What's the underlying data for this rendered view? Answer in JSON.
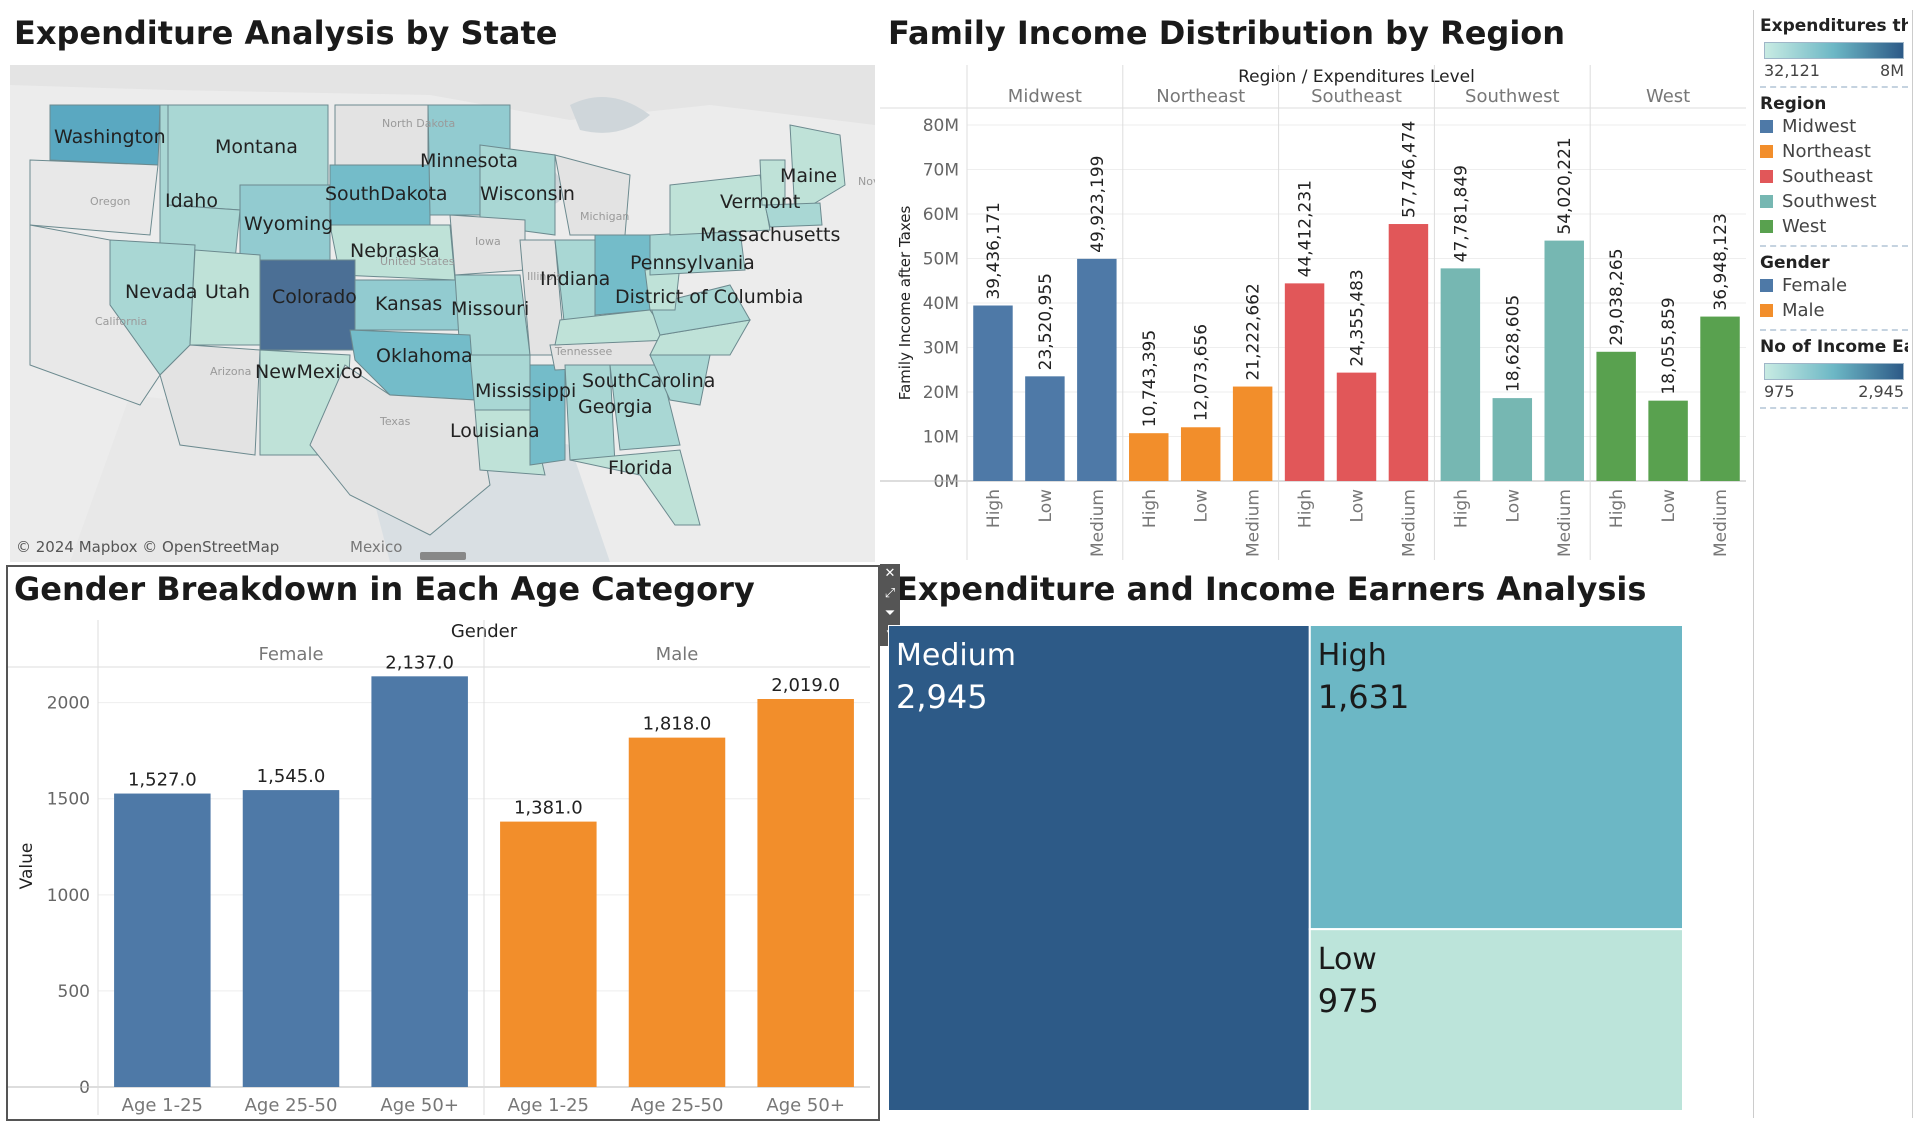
{
  "titles": {
    "map": "Expenditure Analysis by State",
    "region": "Family Income Distribution by Region",
    "age": "Gender Breakdown in Each Age Category",
    "treemap": "Expenditure and Income Earners Analysis"
  },
  "map": {
    "attribution": "© 2024 Mapbox © OpenStreetMap",
    "mexico": "Mexico",
    "state_labels": [
      "Washington",
      "Montana",
      "Idaho",
      "Wyoming",
      "SouthDakota",
      "Minnesota",
      "Wisconsin",
      "Nebraska",
      "Nevada",
      "Utah",
      "Colorado",
      "Kansas",
      "Missouri",
      "Oklahoma",
      "NewMexico",
      "Indiana",
      "Pennsylvania",
      "District of Columbia",
      "Vermont",
      "Maine",
      "Massachusetts",
      "Mississippi",
      "SouthCarolina",
      "Georgia",
      "Louisiana",
      "Florida"
    ],
    "ghost_labels": [
      "North Dakota",
      "Oregon",
      "Iowa",
      "Illinois",
      "Michigan",
      "California",
      "Arizona",
      "Texas",
      "Tennessee",
      "United States",
      "Nova"
    ]
  },
  "legend": {
    "expenditures_title": "Expenditures thi...",
    "expenditures_min": "32,121",
    "expenditures_max": "8M",
    "region_title": "Region",
    "regions": [
      {
        "name": "Midwest",
        "color": "#4e79a7"
      },
      {
        "name": "Northeast",
        "color": "#f28e2b"
      },
      {
        "name": "Southeast",
        "color": "#e15759"
      },
      {
        "name": "Southwest",
        "color": "#76b7b2"
      },
      {
        "name": "West",
        "color": "#59a14f"
      }
    ],
    "gender_title": "Gender",
    "genders": [
      {
        "name": "Female",
        "color": "#4e79a7"
      },
      {
        "name": "Male",
        "color": "#f28e2b"
      }
    ],
    "earners_title": "No of Income Ea...",
    "earners_min": "975",
    "earners_max": "2,945"
  },
  "chart_data": [
    {
      "type": "bar",
      "title": "Family Income Distribution by Region",
      "header": "Region / Expenditures Level",
      "ylabel": "Family Income after Taxes",
      "ylim": [
        0,
        80000000
      ],
      "yticks": [
        "0M",
        "10M",
        "20M",
        "30M",
        "40M",
        "50M",
        "60M",
        "70M",
        "80M"
      ],
      "groups": [
        {
          "region": "Midwest",
          "color": "#4e79a7",
          "categories": [
            "High",
            "Low",
            "Medium"
          ],
          "values": [
            39436171,
            23520955,
            49923199
          ],
          "labels": [
            "39,436,171",
            "23,520,955",
            "49,923,199"
          ]
        },
        {
          "region": "Northeast",
          "color": "#f28e2b",
          "categories": [
            "High",
            "Low",
            "Medium"
          ],
          "values": [
            10743395,
            12073656,
            21222662
          ],
          "labels": [
            "10,743,395",
            "12,073,656",
            "21,222,662"
          ]
        },
        {
          "region": "Southeast",
          "color": "#e15759",
          "categories": [
            "High",
            "Low",
            "Medium"
          ],
          "values": [
            44412231,
            24355483,
            57746474
          ],
          "labels": [
            "44,412,231",
            "24,355,483",
            "57,746,474"
          ]
        },
        {
          "region": "Southwest",
          "color": "#76b7b2",
          "categories": [
            "High",
            "Low",
            "Medium"
          ],
          "values": [
            47781849,
            18628605,
            54020221
          ],
          "labels": [
            "47,781,849",
            "18,628,605",
            "54,020,221"
          ]
        },
        {
          "region": "West",
          "color": "#59a14f",
          "categories": [
            "High",
            "Low",
            "Medium"
          ],
          "values": [
            29038265,
            18055859,
            36948123
          ],
          "labels": [
            "29,038,265",
            "18,055,859",
            "36,948,123"
          ]
        }
      ]
    },
    {
      "type": "bar",
      "title": "Gender Breakdown in Each Age Category",
      "header": "Gender",
      "ylabel": "Value",
      "ylim": [
        0,
        2300
      ],
      "yticks": [
        "0",
        "500",
        "1000",
        "1500",
        "2000"
      ],
      "groups": [
        {
          "gender": "Female",
          "color": "#4e79a7",
          "categories": [
            "Age 1-25",
            "Age 25-50",
            "Age 50+"
          ],
          "values": [
            1527,
            1545,
            2137
          ],
          "labels": [
            "1,527.0",
            "1,545.0",
            "2,137.0"
          ]
        },
        {
          "gender": "Male",
          "color": "#f28e2b",
          "categories": [
            "Age 1-25",
            "Age 25-50",
            "Age 50+"
          ],
          "values": [
            1381,
            1818,
            2019
          ],
          "labels": [
            "1,381.0",
            "1,818.0",
            "2,019.0"
          ]
        }
      ]
    },
    {
      "type": "treemap",
      "title": "Expenditure and Income Earners Analysis",
      "items": [
        {
          "label": "Medium",
          "value": 2945,
          "display": "2,945",
          "color": "#2d5a87"
        },
        {
          "label": "High",
          "value": 1631,
          "display": "1,631",
          "color": "#6cb7c5"
        },
        {
          "label": "Low",
          "value": 975,
          "display": "975",
          "color": "#bce4da"
        }
      ]
    }
  ]
}
